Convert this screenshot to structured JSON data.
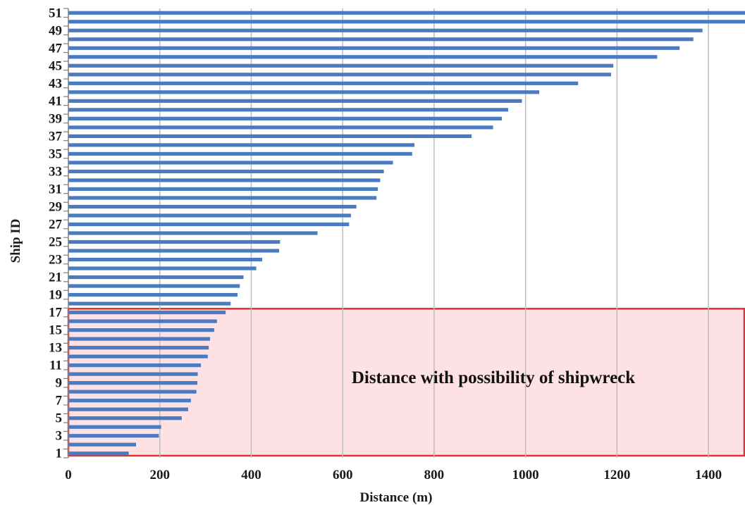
{
  "chart_data": {
    "type": "bar",
    "orientation": "horizontal",
    "title": "",
    "xlabel": "Distance (m)",
    "ylabel": "Ship ID",
    "xlim": [
      0,
      1480
    ],
    "x_ticks": [
      0,
      200,
      400,
      600,
      800,
      1000,
      1200,
      1400
    ],
    "y_tick_labels": [
      "1",
      "3",
      "5",
      "7",
      "9",
      "11",
      "13",
      "15",
      "17",
      "19",
      "21",
      "23",
      "25",
      "27",
      "29",
      "31",
      "33",
      "35",
      "37",
      "39",
      "41",
      "43",
      "45",
      "47",
      "49",
      "51"
    ],
    "grid": "vertical",
    "bar_color": "#4a7bc0",
    "categories": [
      "1",
      "2",
      "3",
      "4",
      "5",
      "6",
      "7",
      "8",
      "9",
      "10",
      "11",
      "12",
      "13",
      "14",
      "15",
      "16",
      "17",
      "18",
      "19",
      "20",
      "21",
      "22",
      "23",
      "24",
      "25",
      "26",
      "27",
      "28",
      "29",
      "30",
      "31",
      "32",
      "33",
      "34",
      "35",
      "36",
      "37",
      "38",
      "39",
      "40",
      "41",
      "42",
      "43",
      "44",
      "45",
      "46",
      "47",
      "48",
      "49",
      "50",
      "51"
    ],
    "values": [
      132,
      148,
      198,
      203,
      248,
      262,
      268,
      280,
      282,
      283,
      290,
      305,
      307,
      310,
      319,
      325,
      344,
      355,
      370,
      375,
      383,
      411,
      424,
      461,
      463,
      545,
      614,
      618,
      630,
      674,
      677,
      682,
      690,
      710,
      752,
      757,
      882,
      929,
      948,
      962,
      992,
      1030,
      1115,
      1187,
      1192,
      1288,
      1337,
      1367,
      1387,
      1480,
      1490
    ],
    "highlight": {
      "label": "Distance with possibility of shipwreck",
      "ship_id_range": [
        1,
        17
      ],
      "fill_color": "#fde1e4",
      "border_color": "#e03030"
    }
  }
}
